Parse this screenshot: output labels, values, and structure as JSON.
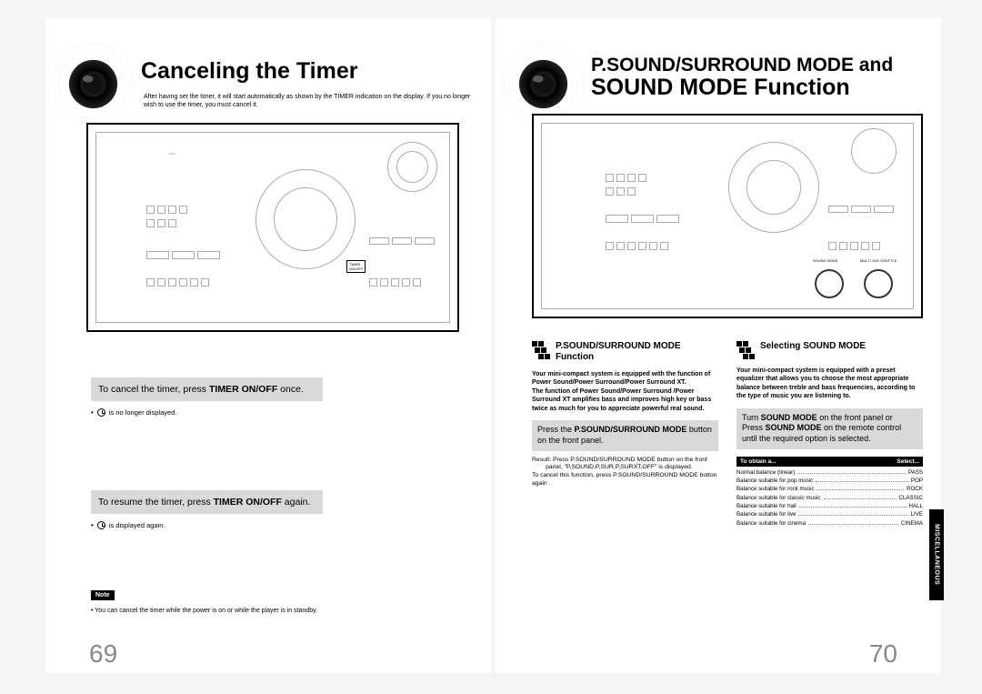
{
  "left": {
    "title": "Canceling the Timer",
    "intro": "After having set the timer, it will start automatically as shown by the TIMER indication on the display. If you no longer wish to use the timer, you must cancel it.",
    "step1_pre": "To cancel the timer, press ",
    "step1_bold": "TIMER ON/OFF",
    "step1_post": " once.",
    "step1_bullet": " is no longer displayed.",
    "step2_pre": "To resume the timer, press ",
    "step2_bold": "TIMER ON/OFF",
    "step2_post": " again.",
    "step2_bullet": " is displayed again.",
    "note_label": "Note",
    "note_text": "• You can cancel the timer while the power is on or while the player is in standby.",
    "page_num": "69"
  },
  "right": {
    "title_l1": "P.SOUND/SURROUND MODE and",
    "title_l2": "SOUND MODE  Function",
    "col1": {
      "title": "P.SOUND/SURROUND MODE Function",
      "body": "Your mini-compact system is equipped with the function of Power Sound/Power Surround/Power Surround XT.\nThe function of Power Sound/Power Surround /Power Surround XT amplifies bass and improves high key or bass twice as much for you to appreciate powerful real sound.",
      "gray_pre": "Press the ",
      "gray_bold": "P.SOUND/SURROUND MODE",
      "gray_post": " button on the front panel.",
      "result_l1": "Result: Press P.SOUND/SURROUND MODE button on the front",
      "result_l2": "panel, \"P,SOUND,P,SUR,P,SURXT,OFF\" is displayed.",
      "result_l3": "To cancel this function, press P.SOUND/SURROUND MODE button again ."
    },
    "col2": {
      "title": "Selecting SOUND MODE",
      "body": "Your mini-compact system is equipped with a preset equalizer that allows you to choose the most appropriate balance between treble and bass frequencies, according to the type of music you are listening to.",
      "gray_l1_pre": "Turn ",
      "gray_l1_b": "SOUND MODE",
      "gray_l1_post": " on the front panel or",
      "gray_l2_pre": "Press ",
      "gray_l2_b": "SOUND MODE",
      "gray_l2_post": " on the remote control",
      "gray_l3": "until the required option is selected.",
      "thdr_l": "To obtain a...",
      "thdr_r": "Select...",
      "rows": [
        {
          "l": "Normal balance (linear)",
          "r": "PASS"
        },
        {
          "l": "Balance suitable for pop music",
          "r": "POP"
        },
        {
          "l": "Balance suitable for rock music",
          "r": "ROCK"
        },
        {
          "l": "Balance suitable for classic music",
          "r": "CLASSIC"
        },
        {
          "l": "Balance suitable for hall",
          "r": "HALL"
        },
        {
          "l": "Balance suitable for live",
          "r": "LIVE"
        },
        {
          "l": "Balance suitable for cinema",
          "r": "CINEMA"
        }
      ]
    },
    "side_tab": "MISCELLANEOUS",
    "page_num": "70"
  }
}
